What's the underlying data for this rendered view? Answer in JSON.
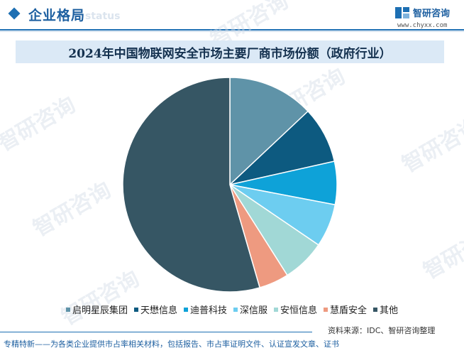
{
  "header": {
    "section_title": "企业格局",
    "section_ghost": "status",
    "logo_name": "智研咨询",
    "logo_url": "www.chyxx.com"
  },
  "watermark_text": "智研咨询",
  "chart_data": {
    "type": "pie",
    "title": "2024年中国物联网安全市场主要厂商市场份额（政府行业）",
    "start": "12 o'clock, clockwise",
    "slices": [
      {
        "label": "启明星辰集团",
        "value": 13.0,
        "color": "#5f93a8"
      },
      {
        "label": "天懋信息",
        "value": 8.5,
        "color": "#0d5a80"
      },
      {
        "label": "迪普科技",
        "value": 6.5,
        "color": "#0ea2d8"
      },
      {
        "label": "深信服",
        "value": 6.5,
        "color": "#6dcdf0"
      },
      {
        "label": "安恒信息",
        "value": 6.5,
        "color": "#a1d8d6"
      },
      {
        "label": "慧盾安全",
        "value": 4.5,
        "color": "#ee9a80"
      },
      {
        "label": "其他",
        "value": 54.5,
        "color": "#365664"
      }
    ]
  },
  "footer": {
    "source": "资料来源：IDC、智研咨询整理",
    "tagline": "专精特新——为各类企业提供市占率相关材料，包括报告、市占率证明文件、认证宣发文章、证书"
  }
}
